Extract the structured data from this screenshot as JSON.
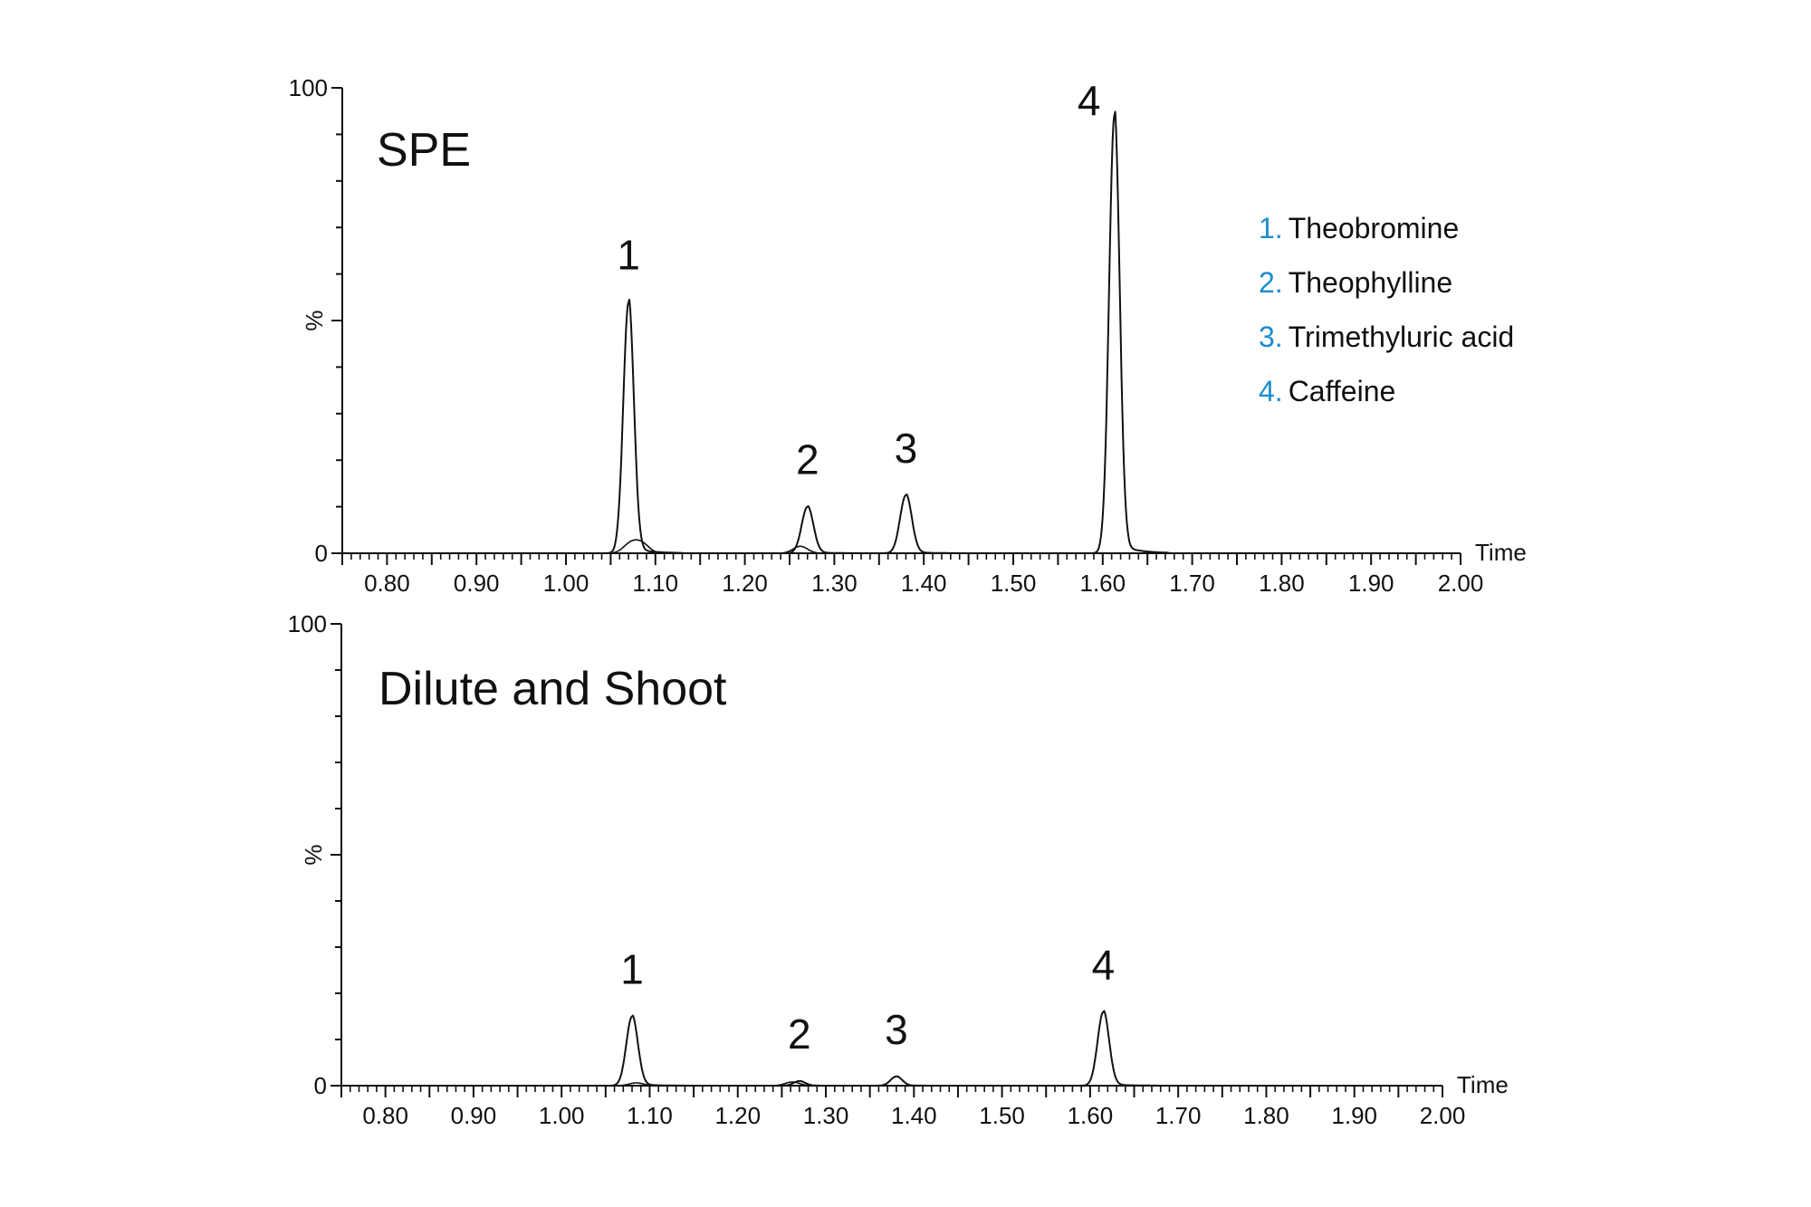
{
  "legend": {
    "number_color": "#1a8ccc",
    "items": [
      {
        "num": "1.",
        "name": "Theobromine"
      },
      {
        "num": "2.",
        "name": "Theophylline"
      },
      {
        "num": "3.",
        "name": "Trimethyluric acid"
      },
      {
        "num": "4.",
        "name": "Caffeine"
      }
    ]
  },
  "panels": [
    {
      "title": "SPE"
    },
    {
      "title": "Dilute and Shoot"
    }
  ],
  "chart_data": [
    {
      "type": "line",
      "title": "SPE",
      "xlabel": "Time",
      "ylabel": "%",
      "xlim": [
        0.75,
        2.0
      ],
      "ylim": [
        0,
        100
      ],
      "x_tick_labels": [
        "0.80",
        "0.90",
        "1.00",
        "1.10",
        "1.20",
        "1.30",
        "1.40",
        "1.50",
        "1.60",
        "1.70",
        "1.80",
        "1.90",
        "2.00"
      ],
      "y_tick_labels": [
        "0",
        "100"
      ],
      "grid": false,
      "peaks": [
        {
          "label": "1",
          "compound": "Theobromine",
          "rt": 1.07,
          "height": 54
        },
        {
          "label": "2",
          "compound": "Theophylline",
          "rt": 1.27,
          "height": 10
        },
        {
          "label": "3",
          "compound": "Trimethyluric acid",
          "rt": 1.38,
          "height": 12.5
        },
        {
          "label": "4",
          "compound": "Caffeine",
          "rt": 1.613,
          "height": 94
        }
      ],
      "minor_traces": [
        {
          "rt": 1.072,
          "height": 2
        },
        {
          "rt": 1.085,
          "height": 2
        },
        {
          "rt": 1.262,
          "height": 1.5
        }
      ]
    },
    {
      "type": "line",
      "title": "Dilute and Shoot",
      "xlabel": "Time",
      "ylabel": "%",
      "xlim": [
        0.75,
        2.0
      ],
      "ylim": [
        0,
        100
      ],
      "x_tick_labels": [
        "0.80",
        "0.90",
        "1.00",
        "1.10",
        "1.20",
        "1.30",
        "1.40",
        "1.50",
        "1.60",
        "1.70",
        "1.80",
        "1.90",
        "2.00"
      ],
      "y_tick_labels": [
        "0",
        "100"
      ],
      "grid": false,
      "peaks": [
        {
          "label": "1",
          "compound": "Theobromine",
          "rt": 1.08,
          "height": 15
        },
        {
          "label": "2",
          "compound": "Theophylline",
          "rt": 1.27,
          "height": 1
        },
        {
          "label": "3",
          "compound": "Trimethyluric acid",
          "rt": 1.38,
          "height": 2
        },
        {
          "label": "4",
          "compound": "Caffeine",
          "rt": 1.615,
          "height": 16
        }
      ],
      "minor_traces": [
        {
          "rt": 1.085,
          "height": 0.6
        },
        {
          "rt": 1.262,
          "height": 0.8
        }
      ]
    }
  ]
}
